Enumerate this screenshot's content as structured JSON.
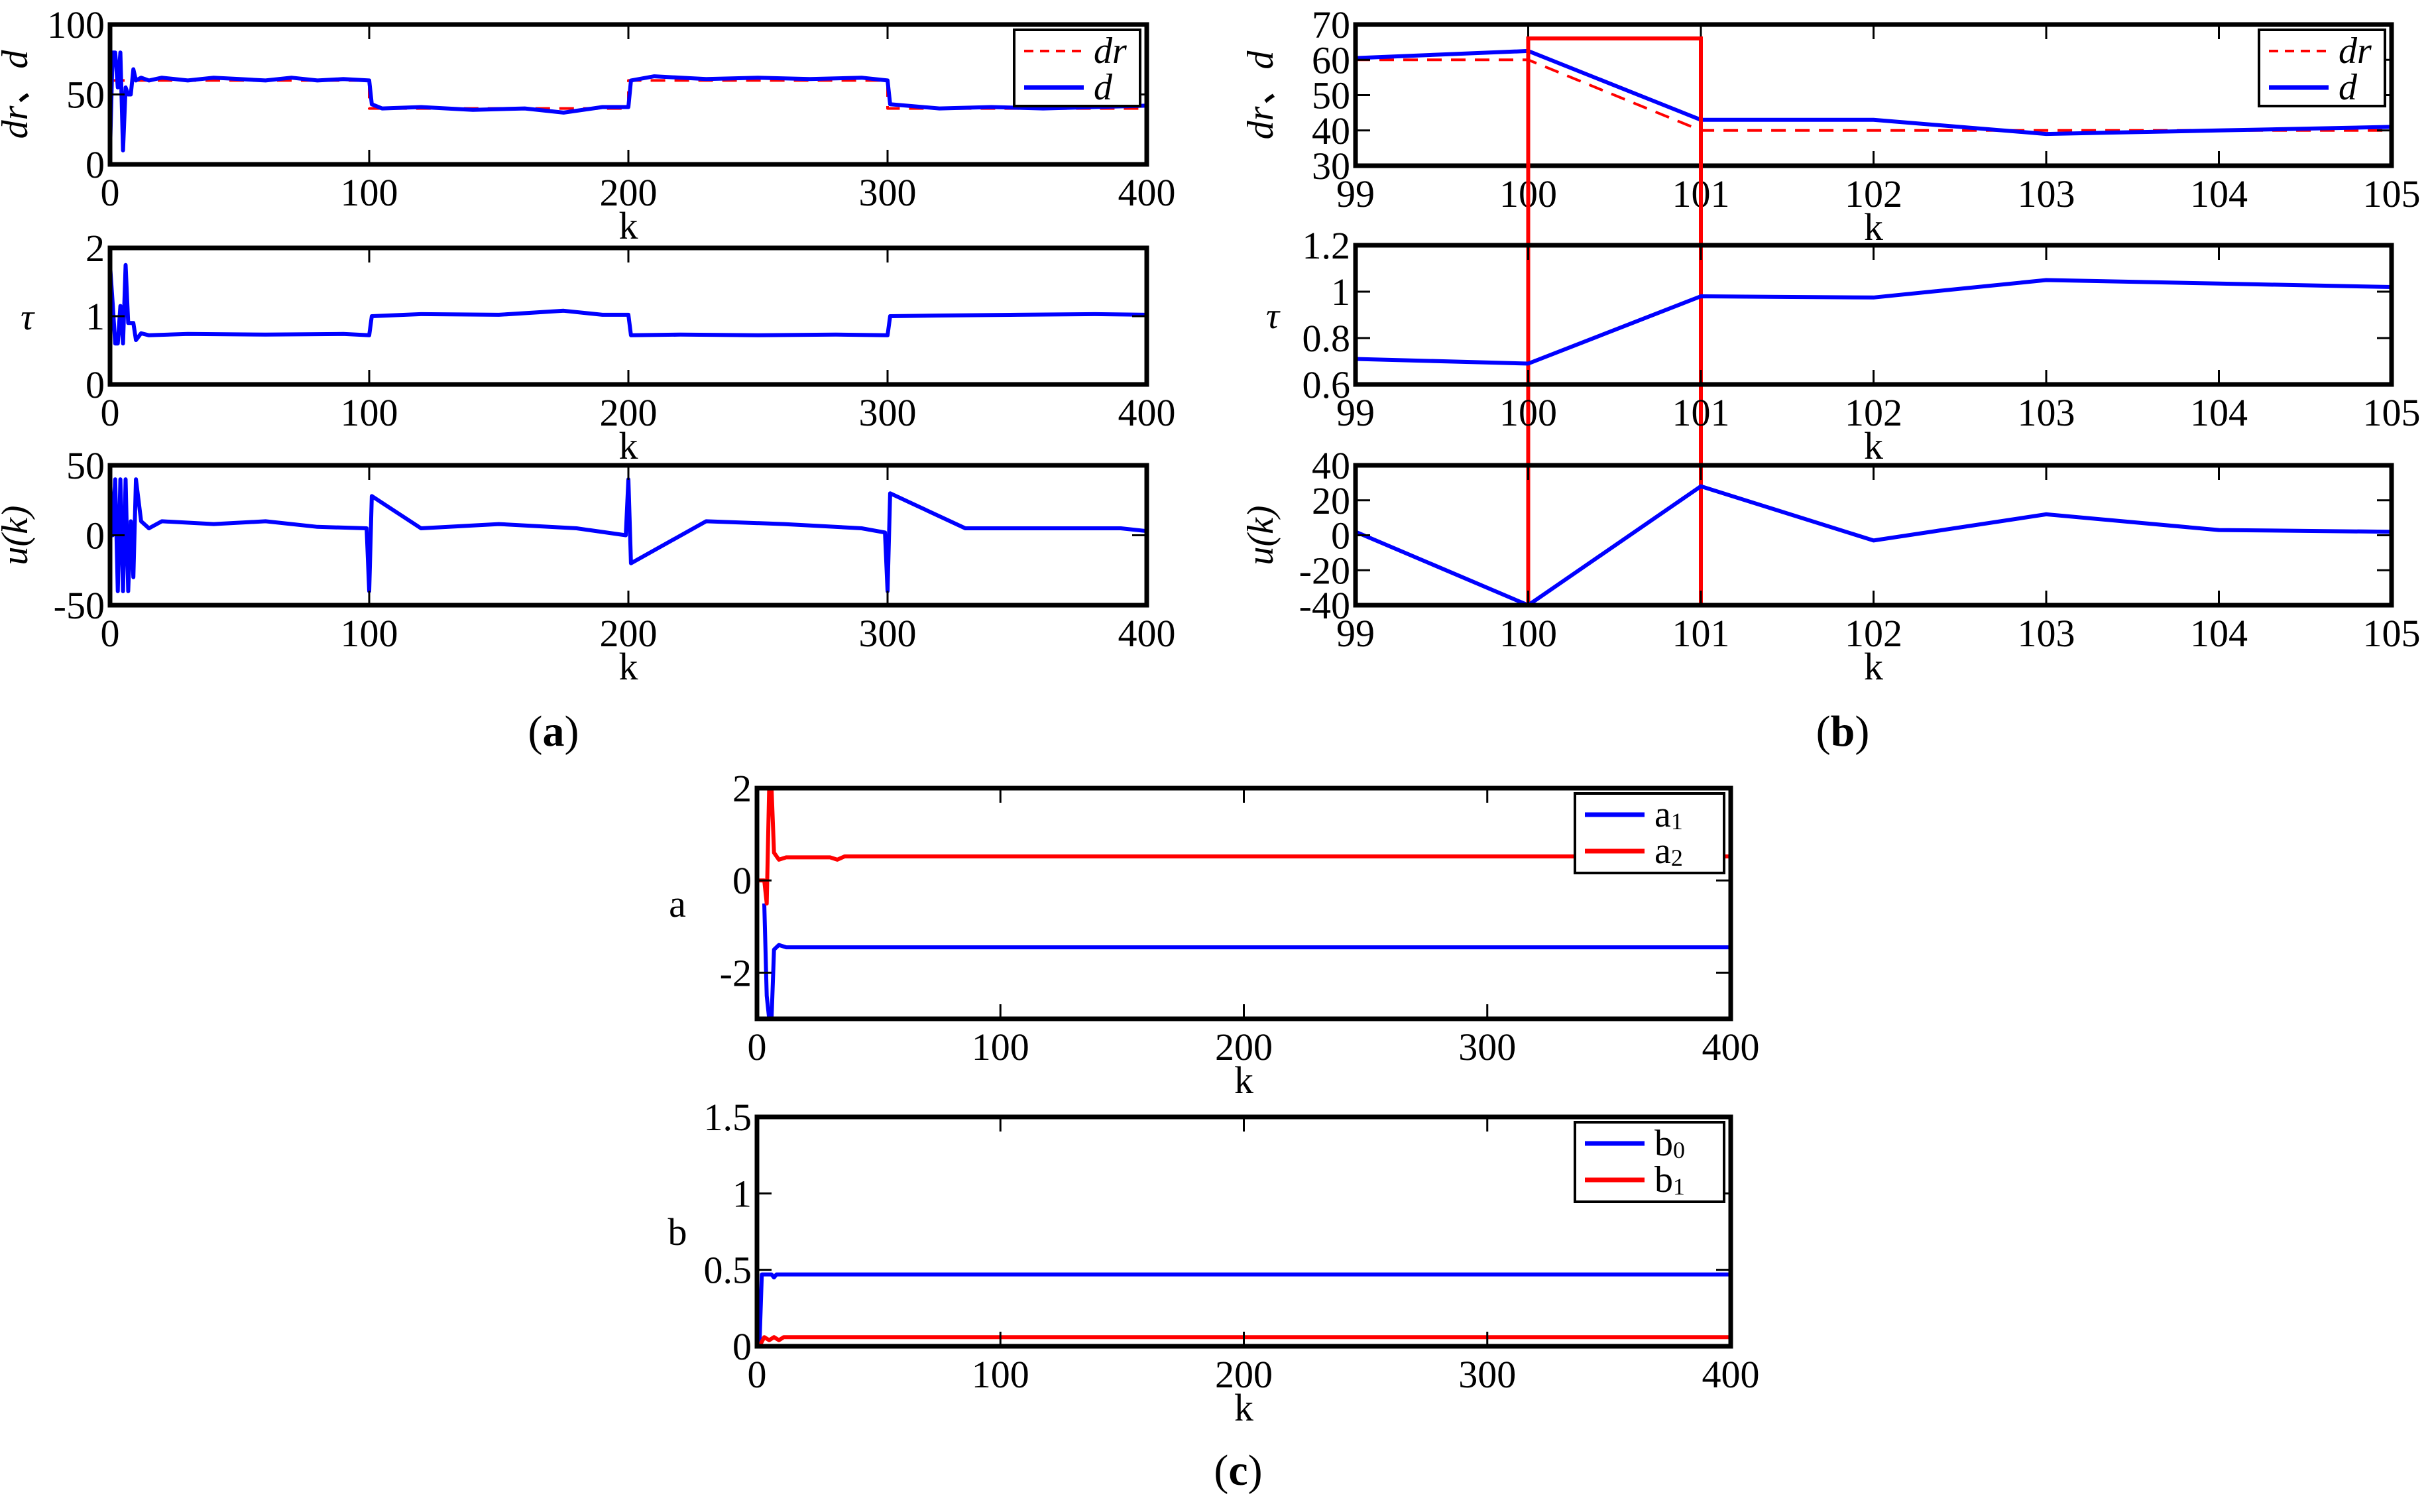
{
  "figure": {
    "panel_labels": {
      "a": "a",
      "b": "b",
      "c": "c"
    }
  },
  "colors": {
    "blue": "#0000ff",
    "red": "#ff0000",
    "axis": "#000000"
  },
  "chart_data": [
    {
      "id": "a1",
      "panel": "a",
      "type": "line",
      "title": "",
      "xlabel": "k",
      "ylabel": "dr、d",
      "xlim": [
        0,
        400
      ],
      "ylim": [
        0,
        100
      ],
      "xticks": [
        0,
        100,
        200,
        300,
        400
      ],
      "yticks": [
        0,
        50,
        100
      ],
      "legend": [
        "dr",
        "d"
      ],
      "legend_position": "upper right",
      "series": [
        {
          "name": "dr",
          "style": "dashed",
          "color": "#ff0000",
          "x": [
            0,
            100,
            100,
            200,
            200,
            300,
            300,
            400
          ],
          "y": [
            60,
            60,
            40,
            40,
            60,
            60,
            40,
            40
          ]
        },
        {
          "name": "d",
          "style": "solid",
          "color": "#0000ff",
          "x": [
            0,
            1,
            2,
            3,
            4,
            5,
            6,
            7,
            8,
            9,
            10,
            12,
            15,
            20,
            30,
            40,
            50,
            60,
            70,
            80,
            90,
            100,
            101,
            105,
            120,
            140,
            160,
            175,
            190,
            200,
            201,
            210,
            230,
            250,
            270,
            290,
            300,
            301,
            320,
            340,
            360,
            380,
            400
          ],
          "y": [
            10,
            80,
            80,
            55,
            80,
            10,
            55,
            50,
            50,
            68,
            60,
            62,
            60,
            62,
            60,
            62,
            61,
            60,
            62,
            60,
            61,
            60,
            43,
            40,
            41,
            39,
            40,
            37,
            41,
            41,
            60,
            63,
            61,
            62,
            61,
            62,
            60,
            43,
            40,
            41,
            40,
            41,
            42
          ]
        }
      ]
    },
    {
      "id": "a2",
      "panel": "a",
      "type": "line",
      "xlabel": "k",
      "ylabel": "τ",
      "xlim": [
        0,
        400
      ],
      "ylim": [
        0,
        2
      ],
      "xticks": [
        0,
        100,
        200,
        300,
        400
      ],
      "yticks": [
        0,
        1,
        2
      ],
      "series": [
        {
          "name": "τ",
          "color": "#0000ff",
          "x": [
            0,
            1,
            2,
            3,
            4,
            5,
            6,
            7,
            8,
            9,
            10,
            12,
            15,
            30,
            60,
            90,
            100,
            101,
            120,
            150,
            175,
            190,
            200,
            201,
            220,
            250,
            280,
            300,
            301,
            320,
            350,
            380,
            400
          ],
          "y": [
            1.75,
            1.2,
            0.6,
            0.6,
            1.15,
            0.6,
            1.75,
            0.9,
            0.9,
            0.9,
            0.65,
            0.75,
            0.72,
            0.74,
            0.73,
            0.74,
            0.72,
            1.0,
            1.03,
            1.02,
            1.08,
            1.02,
            1.02,
            0.72,
            0.73,
            0.72,
            0.73,
            0.72,
            1.0,
            1.01,
            1.02,
            1.03,
            1.02
          ]
        }
      ]
    },
    {
      "id": "a3",
      "panel": "a",
      "type": "line",
      "xlabel": "k",
      "ylabel": "u(k)",
      "xlim": [
        0,
        400
      ],
      "ylim": [
        -50,
        50
      ],
      "xticks": [
        0,
        100,
        200,
        300,
        400
      ],
      "yticks": [
        -50,
        0,
        50
      ],
      "series": [
        {
          "name": "u(k)",
          "color": "#0000ff",
          "x": [
            0,
            1,
            2,
            3,
            4,
            5,
            6,
            7,
            8,
            9,
            10,
            12,
            15,
            20,
            40,
            60,
            80,
            99,
            100,
            101,
            120,
            150,
            180,
            199,
            200,
            201,
            230,
            260,
            290,
            299,
            300,
            301,
            330,
            360,
            390,
            400
          ],
          "y": [
            40,
            0,
            40,
            -40,
            40,
            -40,
            40,
            -40,
            10,
            -30,
            40,
            10,
            5,
            10,
            8,
            10,
            6,
            5,
            -40,
            28,
            5,
            8,
            5,
            0,
            40,
            -20,
            10,
            8,
            5,
            2,
            -40,
            30,
            5,
            5,
            5,
            3
          ]
        }
      ]
    },
    {
      "id": "b1",
      "panel": "b",
      "type": "line",
      "xlabel": "k",
      "ylabel": "dr、d",
      "xlim": [
        99,
        105
      ],
      "ylim": [
        30,
        70
      ],
      "xticks": [
        99,
        100,
        101,
        102,
        103,
        104,
        105
      ],
      "yticks": [
        30,
        40,
        50,
        60,
        70
      ],
      "legend": [
        "dr",
        "d"
      ],
      "legend_position": "upper right",
      "highlight_box": {
        "x": [
          100,
          101
        ],
        "color": "#ff0000"
      },
      "series": [
        {
          "name": "dr",
          "style": "dashed",
          "color": "#ff0000",
          "x": [
            99,
            100,
            101,
            102,
            103,
            104,
            105
          ],
          "y": [
            60,
            60,
            40,
            40,
            40,
            40,
            40
          ]
        },
        {
          "name": "d",
          "style": "solid",
          "color": "#0000ff",
          "x": [
            99,
            100,
            101,
            102,
            103,
            104,
            105
          ],
          "y": [
            60.5,
            62.5,
            43,
            43,
            39,
            40,
            41
          ]
        }
      ]
    },
    {
      "id": "b2",
      "panel": "b",
      "type": "line",
      "xlabel": "k",
      "ylabel": "τ",
      "xlim": [
        99,
        105
      ],
      "ylim": [
        0.6,
        1.2
      ],
      "xticks": [
        99,
        100,
        101,
        102,
        103,
        104,
        105
      ],
      "yticks": [
        0.6,
        0.8,
        1,
        1.2
      ],
      "series": [
        {
          "name": "τ",
          "color": "#0000ff",
          "x": [
            99,
            100,
            101,
            102,
            103,
            104,
            105
          ],
          "y": [
            0.71,
            0.69,
            0.98,
            0.975,
            1.05,
            1.035,
            1.02
          ]
        }
      ]
    },
    {
      "id": "b3",
      "panel": "b",
      "type": "line",
      "xlabel": "k",
      "ylabel": "u(k)",
      "xlim": [
        99,
        105
      ],
      "ylim": [
        -40,
        40
      ],
      "xticks": [
        99,
        100,
        101,
        102,
        103,
        104,
        105
      ],
      "yticks": [
        -40,
        -20,
        0,
        20,
        40
      ],
      "series": [
        {
          "name": "u(k)",
          "color": "#0000ff",
          "x": [
            99,
            100,
            101,
            102,
            103,
            104,
            105
          ],
          "y": [
            2,
            -40,
            28,
            -3,
            12,
            3,
            2
          ]
        }
      ]
    },
    {
      "id": "c1",
      "panel": "c",
      "type": "line",
      "xlabel": "k",
      "ylabel": "a",
      "xlim": [
        0,
        400
      ],
      "ylim": [
        -3,
        2
      ],
      "xticks": [
        0,
        100,
        200,
        300,
        400
      ],
      "yticks": [
        -2,
        0,
        2
      ],
      "legend": [
        "a1",
        "a2"
      ],
      "legend_position": "upper right",
      "series": [
        {
          "name": "a1",
          "color": "#0000ff",
          "x": [
            3,
            4,
            5,
            6,
            7,
            9,
            12,
            20,
            400
          ],
          "y": [
            -0.5,
            -2.5,
            -3,
            -3,
            -1.5,
            -1.4,
            -1.45,
            -1.45,
            -1.45
          ]
        },
        {
          "name": "a2",
          "color": "#ff0000",
          "x": [
            0,
            3,
            4,
            5,
            6,
            7,
            9,
            12,
            30,
            33,
            36,
            400
          ],
          "y": [
            0,
            0,
            -0.5,
            2,
            2,
            0.6,
            0.45,
            0.5,
            0.5,
            0.45,
            0.52,
            0.52
          ]
        }
      ]
    },
    {
      "id": "c2",
      "panel": "c",
      "type": "line",
      "xlabel": "k",
      "ylabel": "b",
      "xlim": [
        0,
        400
      ],
      "ylim": [
        0,
        1.5
      ],
      "xticks": [
        0,
        100,
        200,
        300,
        400
      ],
      "yticks": [
        0,
        0.5,
        1,
        1.5
      ],
      "legend": [
        "b0",
        "b1"
      ],
      "legend_position": "upper right",
      "series": [
        {
          "name": "b0",
          "color": "#0000ff",
          "x": [
            0,
            1,
            2,
            6,
            7,
            8,
            400
          ],
          "y": [
            0,
            0,
            0.47,
            0.47,
            0.45,
            0.47,
            0.47
          ]
        },
        {
          "name": "b1",
          "color": "#ff0000",
          "x": [
            0,
            1,
            3,
            5,
            7,
            9,
            11,
            400
          ],
          "y": [
            0,
            0,
            0.06,
            0.04,
            0.06,
            0.04,
            0.06,
            0.06
          ]
        }
      ]
    }
  ]
}
